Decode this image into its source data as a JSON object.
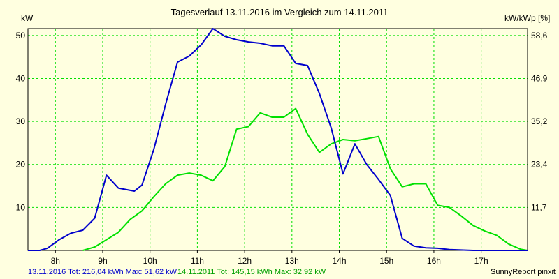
{
  "chart_data": {
    "type": "line",
    "title": "Tagesverlauf 13.11.2016 im Vergleich zum 14.11.2011",
    "ylabel_left": "kW",
    "ylabel_right": "kW/kWp [%]",
    "xlim": [
      7.42,
      17.98
    ],
    "ylim": [
      0,
      51.6
    ],
    "x_ticks": [
      8,
      9,
      10,
      11,
      12,
      13,
      14,
      15,
      16,
      17
    ],
    "x_tick_labels": [
      "8h",
      "9h",
      "10h",
      "11h",
      "12h",
      "13h",
      "14h",
      "15h",
      "16h",
      "17h"
    ],
    "y_ticks": [
      10,
      20,
      30,
      40,
      50
    ],
    "y_tick_labels": [
      "10",
      "20",
      "30",
      "40",
      "50"
    ],
    "y2_ticks": [
      10,
      20,
      30,
      40,
      50
    ],
    "y2_tick_labels": [
      "11,7",
      "23,4",
      "35,2",
      "46,9",
      "58,6"
    ],
    "grid": true,
    "series": [
      {
        "name": "13.11.2016",
        "color": "#0000cc",
        "points": [
          [
            7.42,
            0
          ],
          [
            7.67,
            0
          ],
          [
            7.83,
            0.5
          ],
          [
            8.08,
            2.5
          ],
          [
            8.33,
            4.0
          ],
          [
            8.58,
            4.7
          ],
          [
            8.83,
            7.5
          ],
          [
            9.08,
            17.5
          ],
          [
            9.33,
            14.5
          ],
          [
            9.67,
            13.8
          ],
          [
            9.83,
            15.2
          ],
          [
            10.08,
            23.5
          ],
          [
            10.33,
            34.0
          ],
          [
            10.58,
            43.8
          ],
          [
            10.83,
            45.2
          ],
          [
            11.08,
            47.8
          ],
          [
            11.33,
            51.6
          ],
          [
            11.58,
            49.8
          ],
          [
            11.83,
            49.0
          ],
          [
            12.08,
            48.5
          ],
          [
            12.33,
            48.2
          ],
          [
            12.58,
            47.6
          ],
          [
            12.83,
            47.6
          ],
          [
            13.08,
            43.5
          ],
          [
            13.33,
            43.0
          ],
          [
            13.58,
            36.5
          ],
          [
            13.83,
            28.5
          ],
          [
            14.08,
            17.8
          ],
          [
            14.33,
            24.8
          ],
          [
            14.58,
            20.0
          ],
          [
            14.83,
            16.5
          ],
          [
            15.08,
            12.8
          ],
          [
            15.33,
            2.8
          ],
          [
            15.58,
            1.0
          ],
          [
            15.83,
            0.6
          ],
          [
            16.08,
            0.5
          ],
          [
            16.33,
            0.2
          ],
          [
            16.58,
            0.1
          ],
          [
            16.83,
            0
          ],
          [
            17.08,
            0
          ],
          [
            17.98,
            0
          ]
        ]
      },
      {
        "name": "14.11.2011",
        "color": "#00e000",
        "points": [
          [
            8.58,
            0
          ],
          [
            8.83,
            0.8
          ],
          [
            9.08,
            2.5
          ],
          [
            9.33,
            4.2
          ],
          [
            9.58,
            7.2
          ],
          [
            9.83,
            9.2
          ],
          [
            10.08,
            12.5
          ],
          [
            10.33,
            15.5
          ],
          [
            10.58,
            17.5
          ],
          [
            10.83,
            18.0
          ],
          [
            11.08,
            17.5
          ],
          [
            11.33,
            16.2
          ],
          [
            11.58,
            19.5
          ],
          [
            11.83,
            28.2
          ],
          [
            12.08,
            28.8
          ],
          [
            12.33,
            32.0
          ],
          [
            12.58,
            31.0
          ],
          [
            12.83,
            31.0
          ],
          [
            13.08,
            33.0
          ],
          [
            13.33,
            27.0
          ],
          [
            13.58,
            22.8
          ],
          [
            13.83,
            24.8
          ],
          [
            14.08,
            25.8
          ],
          [
            14.33,
            25.5
          ],
          [
            14.58,
            26.0
          ],
          [
            14.83,
            26.5
          ],
          [
            15.08,
            19.0
          ],
          [
            15.33,
            14.8
          ],
          [
            15.58,
            15.5
          ],
          [
            15.83,
            15.5
          ],
          [
            16.08,
            10.5
          ],
          [
            16.33,
            10.0
          ],
          [
            16.58,
            8.0
          ],
          [
            16.83,
            5.8
          ],
          [
            17.08,
            4.5
          ],
          [
            17.33,
            3.5
          ],
          [
            17.58,
            1.5
          ],
          [
            17.83,
            0.3
          ],
          [
            17.98,
            0
          ]
        ]
      }
    ],
    "legend": [
      {
        "text": "13.11.2016 Tot: 216,04 kWh Max: 51,62 kW",
        "color": "#0000cc"
      },
      {
        "text": "14.11.2011 Tot: 145,15 kWh Max: 32,92 kW",
        "color": "#00a000"
      }
    ],
    "footer_right": "SunnyReport pinxit",
    "colors": {
      "background": "#ffffe0",
      "grid": "#00e000",
      "axis": "#000000"
    }
  }
}
